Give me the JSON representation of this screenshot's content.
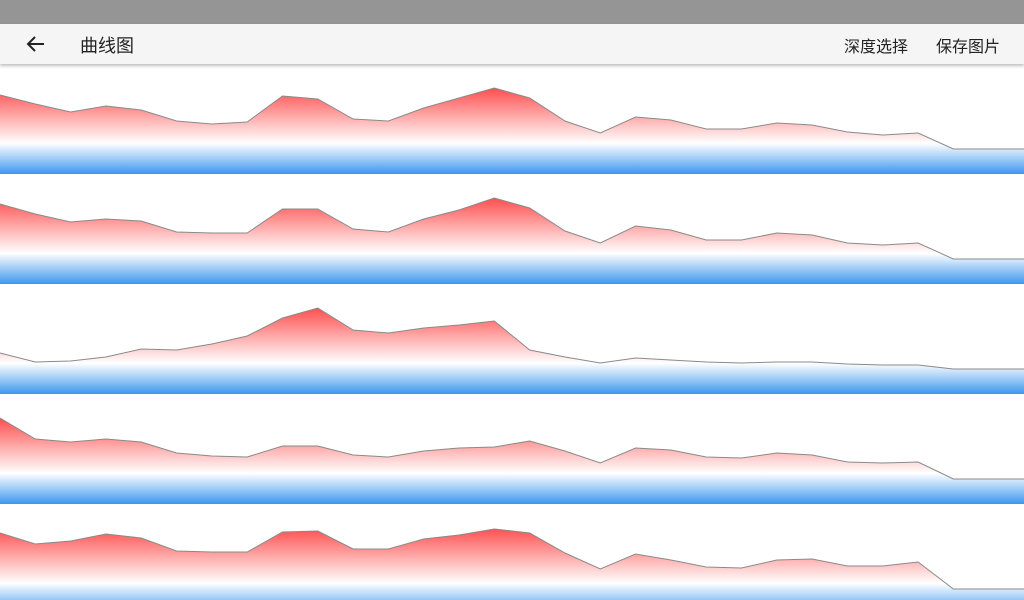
{
  "app_bar": {
    "title": "曲线图",
    "actions": [
      "深度选择",
      "保存图片"
    ]
  },
  "chart_data": [
    {
      "type": "area",
      "ylim": [
        0,
        110
      ],
      "line_color": "#8a8a8a",
      "fill_top": "#ff4848",
      "fill_bottom": "#3d97ee",
      "values": [
        79,
        70,
        62,
        68,
        64,
        53,
        50,
        52,
        78,
        75,
        55,
        53,
        66,
        76,
        86,
        76,
        53,
        41,
        57,
        54,
        45,
        45,
        51,
        49,
        42,
        39,
        41,
        25,
        25,
        25
      ]
    },
    {
      "type": "area",
      "ylim": [
        0,
        110
      ],
      "line_color": "#8a8a8a",
      "fill_top": "#ff4848",
      "fill_bottom": "#3d97ee",
      "values": [
        80,
        70,
        62,
        65,
        63,
        52,
        51,
        51,
        75,
        75,
        55,
        52,
        65,
        74,
        86,
        76,
        53,
        41,
        58,
        54,
        44,
        44,
        51,
        49,
        41,
        39,
        41,
        25,
        25,
        25
      ]
    },
    {
      "type": "area",
      "ylim": [
        0,
        110
      ],
      "line_color": "#8a8a8a",
      "fill_top": "#ff4848",
      "fill_bottom": "#3d97ee",
      "values": [
        41,
        32,
        33,
        37,
        45,
        44,
        50,
        58,
        76,
        86,
        64,
        61,
        66,
        69,
        73,
        44,
        37,
        31,
        36,
        34,
        32,
        31,
        32,
        32,
        30,
        29,
        29,
        25,
        25,
        25
      ]
    },
    {
      "type": "area",
      "ylim": [
        0,
        110
      ],
      "line_color": "#8a8a8a",
      "fill_top": "#ff4848",
      "fill_bottom": "#3d97ee",
      "values": [
        86,
        65,
        62,
        65,
        62,
        51,
        48,
        47,
        58,
        58,
        49,
        47,
        53,
        56,
        57,
        63,
        53,
        41,
        56,
        54,
        47,
        46,
        51,
        49,
        42,
        41,
        42,
        25,
        25,
        25
      ]
    },
    {
      "type": "area",
      "ylim": [
        0,
        110
      ],
      "line_color": "#8a8a8a",
      "fill_top": "#ff4848",
      "fill_bottom": "#3d97ee",
      "values": [
        81,
        70,
        73,
        80,
        76,
        63,
        62,
        62,
        82,
        83,
        65,
        65,
        75,
        79,
        85,
        81,
        61,
        45,
        60,
        54,
        47,
        46,
        54,
        55,
        48,
        48,
        52,
        25,
        25,
        25
      ]
    }
  ]
}
